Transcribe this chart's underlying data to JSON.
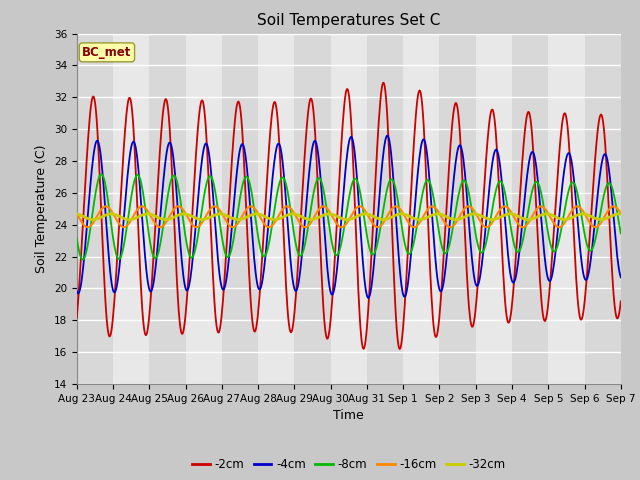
{
  "title": "Soil Temperatures Set C",
  "xlabel": "Time",
  "ylabel": "Soil Temperature (C)",
  "ylim": [
    14,
    36
  ],
  "yticks": [
    14,
    16,
    18,
    20,
    22,
    24,
    26,
    28,
    30,
    32,
    34,
    36
  ],
  "annotation": "BC_met",
  "series": {
    "-2cm": {
      "color": "#cc0000",
      "lw": 1.3
    },
    "-4cm": {
      "color": "#0000cc",
      "lw": 1.3
    },
    "-8cm": {
      "color": "#00bb00",
      "lw": 1.3
    },
    "-16cm": {
      "color": "#ff8800",
      "lw": 1.5
    },
    "-32cm": {
      "color": "#cccc00",
      "lw": 2.0
    }
  },
  "xtick_labels": [
    "Aug 23",
    "Aug 24",
    "Aug 25",
    "Aug 26",
    "Aug 27",
    "Aug 28",
    "Aug 29",
    "Aug 30",
    "Aug 31",
    "Sep 1",
    "Sep 2",
    "Sep 3",
    "Sep 4",
    "Sep 5",
    "Sep 6",
    "Sep 7"
  ],
  "n_days": 16,
  "pts_per_day": 48
}
